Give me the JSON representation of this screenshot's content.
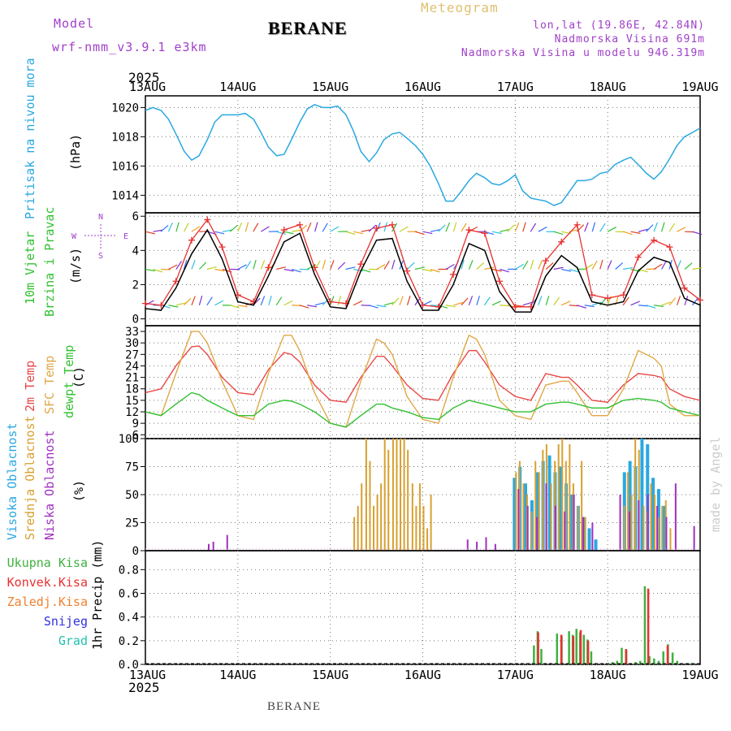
{
  "header": {
    "model_label": "Model",
    "model_name": "wrf-nmm_v3.9.1  e3km",
    "station": "BERANE",
    "product": "Meteogram",
    "lonlat": "lon,lat (19.86E, 42.84N)",
    "altitude": "Nadmorska Visina 691m",
    "model_altitude": "Nadmorska Visina u modelu 946.319m",
    "year": "2025"
  },
  "footer": {
    "station": "BERANE",
    "year": "2025",
    "credit": "made by Angel"
  },
  "dates": [
    "13AUG",
    "14AUG",
    "15AUG",
    "16AUG",
    "17AUG",
    "18AUG",
    "19AUG"
  ],
  "colors": {
    "pressure": "#2aa8e0",
    "wind": "#000000",
    "gust": "#e83030",
    "temp2m": "#e84848",
    "sfc": "#e0a848",
    "dewpt": "#30c030",
    "high_cloud": "#2aa8e0",
    "mid_cloud": "#d8a030",
    "low_cloud": "#a030c0",
    "total_precip": "#40b040",
    "convective": "#e83030",
    "frozen": "#f08030",
    "snow": "#3030e0",
    "graupel": "#20c0b0"
  },
  "chart_data": [
    {
      "type": "line",
      "panel": "pressure",
      "ylabel_lines": [
        "Pritisak na nivou mora",
        "(hPa)"
      ],
      "ylim": [
        1012.8,
        1020.8
      ],
      "yticks": [
        1014,
        1016,
        1018,
        1020
      ],
      "x_days": [
        0,
        0.08,
        0.17,
        0.25,
        0.33,
        0.42,
        0.5,
        0.58,
        0.67,
        0.75,
        0.83,
        0.92,
        1.0,
        1.08,
        1.17,
        1.25,
        1.33,
        1.42,
        1.5,
        1.58,
        1.67,
        1.75,
        1.83,
        1.92,
        2.0,
        2.08,
        2.17,
        2.25,
        2.33,
        2.42,
        2.5,
        2.58,
        2.67,
        2.75,
        2.83,
        2.92,
        3.0,
        3.08,
        3.17,
        3.25,
        3.33,
        3.42,
        3.5,
        3.58,
        3.67,
        3.75,
        3.83,
        3.92,
        4.0,
        4.08,
        4.17,
        4.25,
        4.33,
        4.42,
        4.5,
        4.58,
        4.67,
        4.75,
        4.83,
        4.92,
        5.0,
        5.08,
        5.17,
        5.25,
        5.33,
        5.42,
        5.5,
        5.58,
        5.67,
        5.75,
        5.83,
        5.92,
        6.0
      ],
      "values": [
        1019.8,
        1020.0,
        1019.8,
        1019.2,
        1018.2,
        1017.0,
        1016.4,
        1016.7,
        1017.8,
        1019.0,
        1019.5,
        1019.5,
        1019.5,
        1019.6,
        1019.2,
        1018.3,
        1017.3,
        1016.7,
        1016.8,
        1017.8,
        1019.0,
        1019.9,
        1020.2,
        1020.0,
        1020.0,
        1020.1,
        1019.5,
        1018.4,
        1017.0,
        1016.3,
        1016.9,
        1017.8,
        1018.2,
        1018.3,
        1017.9,
        1017.4,
        1016.8,
        1016.0,
        1014.8,
        1013.6,
        1013.6,
        1014.3,
        1015.0,
        1015.5,
        1015.2,
        1014.8,
        1014.7,
        1015.0,
        1015.4,
        1014.3,
        1013.8,
        1013.7,
        1013.6,
        1013.3,
        1013.5,
        1014.2,
        1015.0,
        1015.0,
        1015.1,
        1015.5,
        1015.6,
        1016.1,
        1016.4,
        1016.6,
        1016.1,
        1015.5,
        1015.1,
        1015.6,
        1016.5,
        1017.4,
        1018.0,
        1018.3,
        1018.6
      ]
    },
    {
      "type": "line",
      "panel": "wind",
      "ylabel_lines": [
        "10m Vjetar",
        "Brzina i Pravac",
        "(m/s)"
      ],
      "compass": [
        "N",
        "W",
        "E",
        "S"
      ],
      "ylim": [
        -0.4,
        6.2
      ],
      "yticks": [
        0,
        2,
        4,
        6
      ],
      "x_days": [
        0,
        0.17,
        0.33,
        0.5,
        0.67,
        0.83,
        1.0,
        1.17,
        1.33,
        1.5,
        1.67,
        1.83,
        2.0,
        2.17,
        2.33,
        2.5,
        2.67,
        2.83,
        3.0,
        3.17,
        3.33,
        3.5,
        3.67,
        3.83,
        4.0,
        4.17,
        4.33,
        4.5,
        4.67,
        4.83,
        5.0,
        5.17,
        5.33,
        5.5,
        5.67,
        5.83,
        6.0
      ],
      "series": [
        {
          "name": "speed",
          "values": [
            0.6,
            0.5,
            1.8,
            3.8,
            5.2,
            3.5,
            1.0,
            0.8,
            2.5,
            4.5,
            5.0,
            2.6,
            0.7,
            0.6,
            2.8,
            4.6,
            4.7,
            2.2,
            0.5,
            0.5,
            2.0,
            4.4,
            4.0,
            1.6,
            0.4,
            0.4,
            2.5,
            3.7,
            3.0,
            1.0,
            0.8,
            1.0,
            2.8,
            3.6,
            3.3,
            1.2,
            0.8
          ]
        },
        {
          "name": "gust",
          "values": [
            0.9,
            0.8,
            2.2,
            4.6,
            5.8,
            4.2,
            1.4,
            1.0,
            3.0,
            5.2,
            5.5,
            3.0,
            1.0,
            0.9,
            3.2,
            5.3,
            5.5,
            2.8,
            0.8,
            0.7,
            2.6,
            5.2,
            5.0,
            2.2,
            0.7,
            0.7,
            3.4,
            4.5,
            5.5,
            1.4,
            1.2,
            1.4,
            3.6,
            4.6,
            4.2,
            1.8,
            1.1
          ]
        }
      ],
      "barb_levels": [
        0.8,
        2.9,
        5.1
      ]
    },
    {
      "type": "line",
      "panel": "temperature",
      "ylabel_lines": [
        "2m Temp",
        "SFC Temp",
        "dewpt Temp",
        "(C)"
      ],
      "ylim": [
        5,
        34.5
      ],
      "yticks": [
        6,
        9,
        12,
        15,
        18,
        21,
        24,
        27,
        30,
        33
      ],
      "x_days": [
        0,
        0.17,
        0.33,
        0.5,
        0.58,
        0.67,
        0.83,
        1.0,
        1.17,
        1.33,
        1.5,
        1.58,
        1.67,
        1.83,
        2.0,
        2.17,
        2.33,
        2.5,
        2.58,
        2.67,
        2.83,
        3.0,
        3.17,
        3.33,
        3.5,
        3.58,
        3.67,
        3.83,
        4.0,
        4.17,
        4.33,
        4.5,
        4.58,
        4.67,
        4.83,
        5.0,
        5.17,
        5.33,
        5.5,
        5.58,
        5.67,
        5.83,
        6.0
      ],
      "series": [
        {
          "name": "2m",
          "values": [
            17,
            18,
            24,
            29,
            29.2,
            27,
            21,
            17,
            16.5,
            23,
            27.5,
            27,
            25,
            19,
            15,
            14.5,
            21,
            26.5,
            26.5,
            24,
            19,
            15.5,
            15,
            22,
            28,
            28,
            25,
            19,
            16,
            15,
            22,
            21,
            21,
            19,
            15,
            14.5,
            19,
            22,
            21.5,
            21,
            18,
            16,
            15
          ]
        },
        {
          "name": "sfc",
          "values": [
            12,
            11,
            22,
            33,
            33,
            30,
            20,
            11,
            10,
            22,
            32,
            32,
            28,
            17,
            9,
            8,
            20,
            31,
            30,
            27,
            16,
            10,
            9,
            21,
            32,
            31,
            27,
            15,
            11,
            10,
            19,
            20,
            20,
            17,
            11,
            11,
            18,
            28,
            26,
            24,
            14,
            11,
            11
          ]
        },
        {
          "name": "dewpt",
          "values": [
            12,
            11,
            14,
            17,
            16.5,
            15,
            13,
            11,
            11,
            14,
            15,
            14.8,
            14,
            12,
            9,
            8,
            11,
            14,
            14,
            13,
            12,
            10.5,
            10,
            13,
            15,
            14.5,
            14,
            13,
            12,
            12,
            14,
            14.5,
            14.5,
            14,
            13,
            13,
            15,
            15.5,
            15,
            14.5,
            13,
            12,
            11
          ]
        }
      ]
    },
    {
      "type": "bar",
      "panel": "cloud",
      "ylabel_lines": [
        "Visoka Oblacnost",
        "Srednja Oblacnost",
        "Niska Oblacnost",
        "(%)"
      ],
      "ylim": [
        0,
        100
      ],
      "yticks": [
        0,
        25,
        50,
        75,
        100
      ],
      "series": [
        {
          "name": "high",
          "x_days": [
            4.0,
            4.06,
            4.12,
            4.19,
            4.25,
            4.31,
            4.38,
            4.44,
            4.5,
            4.56,
            4.62,
            4.69,
            4.75,
            4.81,
            4.88,
            5.19,
            5.25,
            5.31,
            5.38,
            5.44,
            5.5,
            5.56,
            5.62
          ],
          "values": [
            65,
            75,
            60,
            45,
            70,
            80,
            85,
            70,
            75,
            60,
            50,
            40,
            30,
            20,
            10,
            70,
            80,
            75,
            100,
            95,
            65,
            55,
            40
          ]
        },
        {
          "name": "mid",
          "x_days": [
            2.25,
            2.29,
            2.33,
            2.38,
            2.42,
            2.46,
            2.5,
            2.54,
            2.58,
            2.62,
            2.67,
            2.71,
            2.75,
            2.79,
            2.83,
            2.88,
            2.92,
            2.96,
            3.0,
            3.04,
            3.08,
            4.0,
            4.04,
            4.08,
            4.12,
            4.17,
            4.21,
            4.25,
            4.29,
            4.33,
            4.38,
            4.42,
            4.46,
            4.5,
            4.54,
            4.58,
            4.62,
            4.67,
            4.71,
            4.75,
            5.17,
            5.21,
            5.25,
            5.29,
            5.33,
            5.38,
            5.42,
            5.46,
            5.5,
            5.54,
            5.58,
            5.62,
            5.67
          ],
          "values": [
            30,
            40,
            60,
            100,
            80,
            40,
            50,
            60,
            100,
            90,
            100,
            100,
            100,
            100,
            90,
            60,
            40,
            60,
            40,
            20,
            50,
            70,
            80,
            60,
            50,
            35,
            80,
            70,
            90,
            95,
            60,
            80,
            95,
            100,
            80,
            95,
            60,
            40,
            80,
            30,
            40,
            70,
            50,
            100,
            90,
            40,
            35,
            60,
            50,
            30,
            40,
            45,
            20
          ]
        },
        {
          "name": "low",
          "x_days": [
            0.65,
            0.7,
            0.85,
            3.45,
            3.55,
            3.65,
            3.75,
            4.0,
            4.1,
            4.2,
            4.3,
            4.4,
            4.5,
            4.6,
            4.7,
            4.8,
            5.1,
            5.2,
            5.3,
            5.4,
            5.5,
            5.6,
            5.7,
            5.9
          ],
          "values": [
            6,
            8,
            14,
            10,
            8,
            12,
            6,
            55,
            40,
            30,
            60,
            40,
            35,
            50,
            30,
            25,
            50,
            35,
            45,
            50,
            40,
            30,
            60,
            22
          ]
        }
      ]
    },
    {
      "type": "bar",
      "panel": "precipitation",
      "ylabel_lines": [
        "1hr Precip (mm)"
      ],
      "legend": [
        "Ukupna Kisa",
        "Konvek.Kisa",
        "Zaledj.Kisa",
        "Snijeg",
        "Grad"
      ],
      "ylim": [
        0,
        0.96
      ],
      "yticks": [
        0.0,
        0.2,
        0.4,
        0.6,
        0.8
      ],
      "series": [
        {
          "name": "Ukupna Kisa",
          "x_days": [
            4.2,
            4.24,
            4.28,
            4.45,
            4.5,
            4.58,
            4.62,
            4.66,
            4.7,
            4.74,
            4.78,
            4.82,
            5.0,
            5.05,
            5.1,
            5.15,
            5.2,
            5.3,
            5.35,
            5.4,
            5.45,
            5.5,
            5.55,
            5.6,
            5.65,
            5.7,
            5.75,
            5.9
          ],
          "values": [
            0.16,
            0.28,
            0.13,
            0.26,
            0.24,
            0.28,
            0.25,
            0.3,
            0.27,
            0.25,
            0.21,
            0.11,
            0.01,
            0.02,
            0.03,
            0.14,
            0.12,
            0.02,
            0.03,
            0.66,
            0.07,
            0.05,
            0.03,
            0.11,
            0.17,
            0.1,
            0.03,
            0.01
          ]
        },
        {
          "name": "Konvek.Kisa",
          "x_days": [
            4.22,
            4.47,
            4.6,
            4.68,
            4.76,
            5.17,
            5.41,
            5.62
          ],
          "values": [
            0.27,
            0.25,
            0.24,
            0.29,
            0.2,
            0.13,
            0.64,
            0.16
          ]
        }
      ]
    }
  ]
}
